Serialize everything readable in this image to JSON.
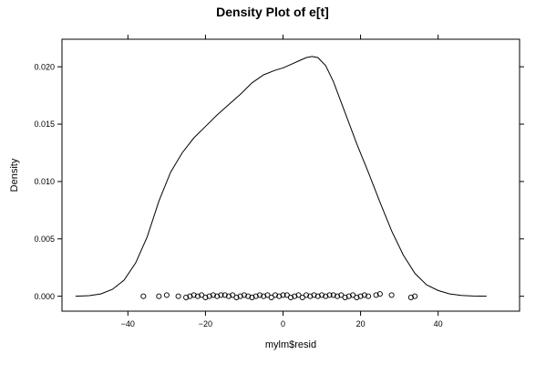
{
  "chart_data": {
    "type": "line",
    "title": "Density Plot of e[t]",
    "xlabel": "mylm$resid",
    "ylabel": "Density",
    "xlim": [
      -57,
      61
    ],
    "ylim": [
      -0.0013,
      0.0224
    ],
    "x_ticks": [
      -40,
      -20,
      0,
      20,
      40
    ],
    "x_tick_labels": [
      "−40",
      "−20",
      "0",
      "20",
      "40"
    ],
    "y_ticks": [
      0.0,
      0.005,
      0.01,
      0.015,
      0.02
    ],
    "y_tick_labels": [
      "0.000",
      "0.005",
      "0.010",
      "0.015",
      "0.020"
    ],
    "grid": false,
    "series": [
      {
        "kind": "density-line",
        "x": [
          -53.5,
          -50,
          -47,
          -44,
          -41,
          -38,
          -35,
          -32,
          -29,
          -26,
          -23,
          -20,
          -17,
          -14,
          -11,
          -8,
          -5,
          -2,
          0,
          2,
          4,
          6,
          7.5,
          9,
          11,
          13,
          16,
          19,
          22,
          25,
          28,
          31,
          34,
          37,
          40,
          43,
          46,
          49,
          52.5
        ],
        "y": [
          0.0,
          5e-05,
          0.0002,
          0.0006,
          0.0014,
          0.0029,
          0.0052,
          0.0083,
          0.0108,
          0.0125,
          0.0138,
          0.0148,
          0.0158,
          0.0167,
          0.0176,
          0.0186,
          0.0193,
          0.0197,
          0.0199,
          0.0202,
          0.0205,
          0.0208,
          0.0209,
          0.0208,
          0.0201,
          0.0187,
          0.016,
          0.0133,
          0.0108,
          0.0082,
          0.0057,
          0.0036,
          0.002,
          0.001,
          0.0005,
          0.0002,
          7e-05,
          2e-05,
          0.0
        ]
      },
      {
        "kind": "rug-points",
        "x": [
          -36,
          -32,
          -30,
          -27,
          -25,
          -24,
          -23,
          -22,
          -21,
          -20,
          -19,
          -18,
          -17,
          -16,
          -15,
          -14,
          -13,
          -12,
          -11,
          -10,
          -9,
          -8,
          -7,
          -6,
          -5,
          -4,
          -3,
          -2,
          -1,
          0,
          1,
          2,
          3,
          4,
          5,
          6,
          7,
          8,
          9,
          10,
          11,
          12,
          13,
          14,
          15,
          16,
          17,
          18,
          19,
          20,
          21,
          22,
          24,
          25,
          28,
          33,
          34
        ],
        "y": [
          0.0,
          0.0,
          0.0001,
          0.0,
          -0.0001,
          0.0,
          0.0001,
          0.0,
          0.0001,
          -0.0001,
          0.0,
          0.0001,
          0.0,
          0.0001,
          0.0001,
          0.0,
          0.0001,
          -0.0001,
          0.0,
          0.0001,
          0.0,
          -0.0001,
          0.0,
          0.0001,
          0.0,
          0.0001,
          -0.0001,
          0.0001,
          0.0,
          0.0001,
          0.0001,
          -0.0001,
          0.0,
          0.0001,
          -0.0001,
          0.0001,
          0.0,
          0.0001,
          0.0,
          0.0001,
          0.0,
          0.0001,
          0.0001,
          0.0,
          0.0001,
          -0.0001,
          0.0,
          0.0001,
          -0.0001,
          0.0,
          0.0001,
          0.0,
          0.0001,
          0.0002,
          0.0001,
          -0.0001,
          0.0
        ]
      }
    ]
  }
}
